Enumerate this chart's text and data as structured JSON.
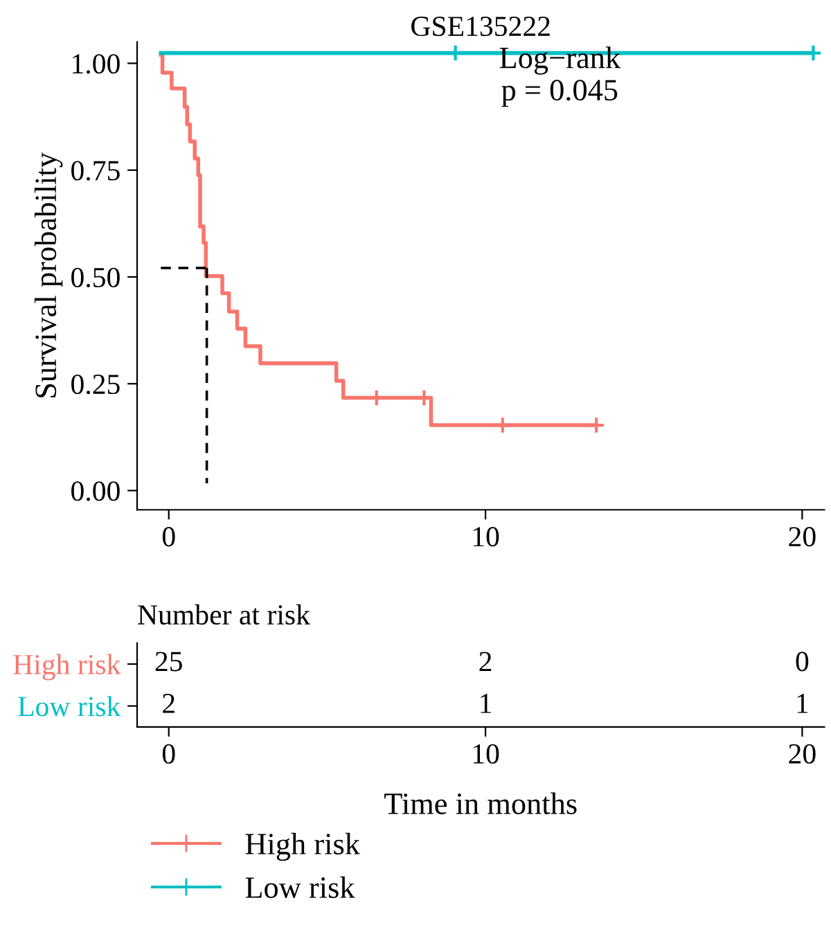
{
  "chart_data": [
    {
      "type": "step",
      "title": "GSE135222",
      "ylabel": "Survival probability",
      "xlim": [
        -1,
        20.7
      ],
      "ylim": [
        -0.045,
        1.05
      ],
      "xticks": [
        0,
        10,
        20
      ],
      "yticks": [
        {
          "value": 0,
          "label": "0.00"
        },
        {
          "value": 0.25,
          "label": "0.25"
        },
        {
          "value": 0.5,
          "label": "0.50"
        },
        {
          "value": 0.75,
          "label": "0.75"
        },
        {
          "value": 1,
          "label": "1.00"
        }
      ],
      "grid": false,
      "legend": "bottom",
      "line_style": "solid",
      "annotations": [
        "Log−rank\np = 0.045"
      ],
      "series": [
        {
          "name": "High risk",
          "color": "#f8766d",
          "x": [
            -0.25,
            -0.2,
            0.09,
            0.5,
            0.58,
            0.67,
            0.82,
            0.93,
            0.99,
            1.1,
            1.17,
            1.69,
            1.9,
            2.16,
            2.42,
            2.89,
            5.29,
            5.51,
            8.28,
            13.5
          ],
          "values": [
            1.02,
            0.978,
            0.941,
            0.898,
            0.857,
            0.817,
            0.777,
            0.738,
            0.618,
            0.58,
            0.502,
            0.462,
            0.419,
            0.379,
            0.338,
            0.298,
            0.257,
            0.217,
            0.153,
            0.153
          ]
        },
        {
          "name": "Low risk",
          "color": "#00bfc4",
          "x": [
            -0.25,
            20.35
          ],
          "values": [
            1.024,
            1.024
          ]
        },
        {
          "type": "scatter",
          "color": "#f8766d",
          "marker": "cross",
          "x": [
            6.56,
            8.06,
            10.54,
            13.5
          ],
          "values": [
            0.217,
            0.217,
            0.153,
            0.153
          ]
        },
        {
          "type": "scatter",
          "color": "#00bfc4",
          "marker": "cross",
          "x": [
            9.05,
            20.35
          ],
          "values": [
            1.024,
            1.024
          ]
        },
        {
          "type": "line",
          "color": "#000000",
          "line_style": "dashed",
          "x": [
            -0.25,
            1.2
          ],
          "values": [
            0.521,
            0.521
          ]
        },
        {
          "type": "line",
          "color": "#000000",
          "line_style": "dashed",
          "x": [
            1.2,
            1.2
          ],
          "values": [
            0.521,
            0.017
          ]
        }
      ]
    },
    {
      "type": "heatmap",
      "title": "Number at risk",
      "xlabel": "Time in months",
      "x": [
        0,
        10,
        20
      ],
      "xlim": [
        -1,
        20.7
      ],
      "xticks": [
        0,
        10,
        20
      ],
      "data_labels": true,
      "y_categories": [
        "High risk",
        "Low risk"
      ],
      "colors": [
        "#f8766d",
        "#00bfc4"
      ],
      "cells": [
        [
          25,
          2,
          0
        ],
        [
          2,
          1,
          1
        ]
      ]
    }
  ]
}
